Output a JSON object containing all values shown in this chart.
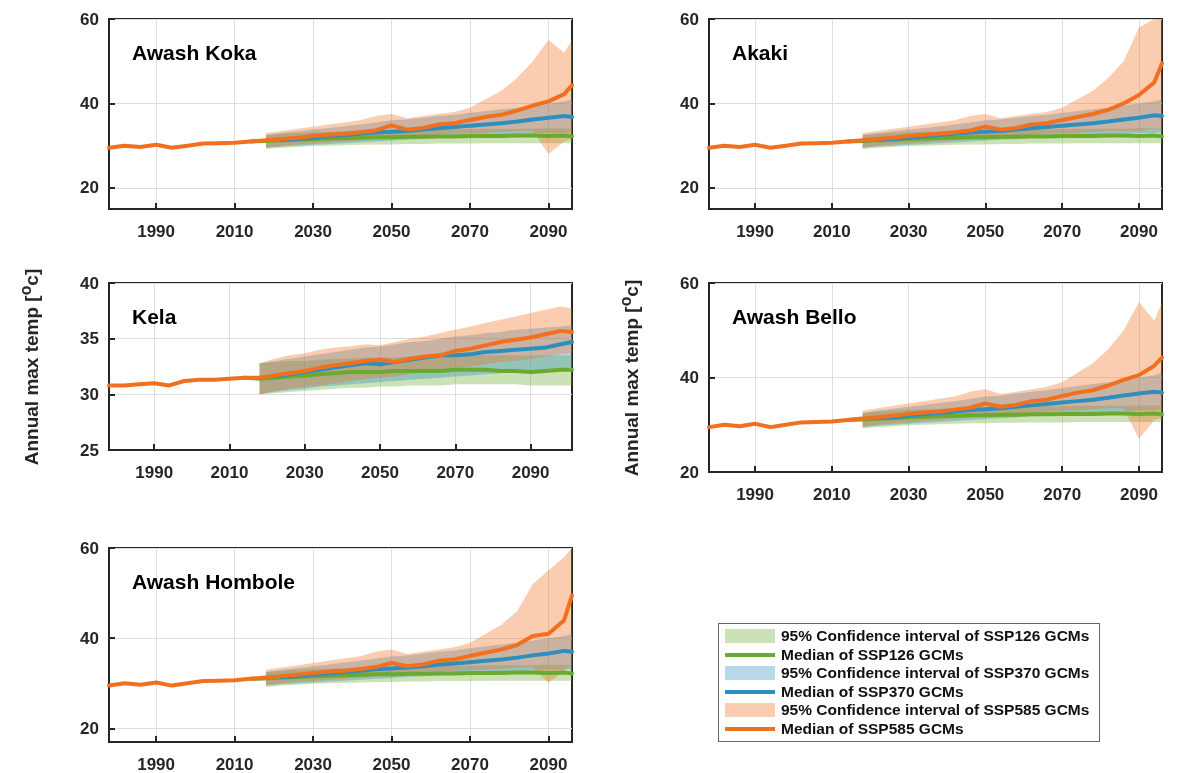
{
  "chart_data": [
    {
      "type": "line",
      "title": "Awash Koka",
      "x": [
        1978,
        1982,
        1986,
        1990,
        1994,
        1998,
        2002,
        2006,
        2010,
        2014,
        2018,
        2022,
        2026,
        2030,
        2034,
        2038,
        2042,
        2046,
        2050,
        2054,
        2058,
        2062,
        2066,
        2070,
        2074,
        2078,
        2082,
        2086,
        2090,
        2094,
        2096
      ],
      "xlim": [
        1978,
        2096
      ],
      "xticks": [
        1990,
        2010,
        2030,
        2050,
        2070,
        2090
      ],
      "ylim": [
        15,
        60
      ],
      "yticks": [
        20,
        40,
        60
      ],
      "grid": true,
      "series": [
        {
          "color": "#6aaa2e",
          "values": [
            null,
            null,
            null,
            null,
            null,
            null,
            null,
            null,
            null,
            31,
            31.1,
            31.3,
            31.4,
            31.6,
            31.7,
            31.8,
            31.9,
            32,
            32,
            32.1,
            32.1,
            32.2,
            32.2,
            32.3,
            32.3,
            32.3,
            32.4,
            32.4,
            32.3,
            32.4,
            32.2
          ],
          "lower": [
            null,
            null,
            null,
            null,
            null,
            null,
            null,
            null,
            null,
            null,
            29.2,
            29.5,
            29.7,
            29.9,
            30,
            30.1,
            30.2,
            30.3,
            30.3,
            30.4,
            30.4,
            30.5,
            30.5,
            30.5,
            30.6,
            30.6,
            30.6,
            30.6,
            30.6,
            30.6,
            30.6
          ],
          "upper": [
            null,
            null,
            null,
            null,
            null,
            null,
            null,
            null,
            null,
            null,
            32.5,
            32.8,
            33,
            33.2,
            33.3,
            33.4,
            33.5,
            33.6,
            33.7,
            33.7,
            33.8,
            33.8,
            33.9,
            33.9,
            34,
            34,
            34,
            34,
            34.1,
            34.1,
            34.1
          ]
        },
        {
          "color": "#2e8fbf",
          "values": [
            null,
            null,
            null,
            null,
            null,
            null,
            null,
            null,
            null,
            null,
            null,
            31.4,
            31.6,
            31.9,
            32.2,
            32.5,
            32.8,
            33.1,
            33.3,
            33.5,
            33.8,
            34.1,
            34.4,
            34.7,
            35,
            35.3,
            35.7,
            36.2,
            36.6,
            37,
            36.8
          ],
          "lower": [
            null,
            null,
            null,
            null,
            null,
            null,
            null,
            null,
            null,
            null,
            29.5,
            29.8,
            30,
            30.2,
            30.4,
            30.6,
            30.8,
            31,
            31.2,
            31.4,
            31.6,
            31.8,
            32,
            32.1,
            32.3,
            32.5,
            32.6,
            32.8,
            33,
            33,
            33.2
          ],
          "upper": [
            null,
            null,
            null,
            null,
            null,
            null,
            null,
            null,
            null,
            null,
            32.5,
            33,
            33.4,
            33.8,
            34.2,
            34.6,
            35,
            35.5,
            36,
            36.2,
            36.6,
            37,
            37.3,
            37.8,
            38.2,
            38.6,
            39,
            39.5,
            40,
            40.5,
            41
          ]
        },
        {
          "color": "#f07020",
          "values": [
            29.5,
            30,
            29.7,
            30.2,
            29.5,
            30,
            30.5,
            30.6,
            30.7,
            31,
            31.3,
            31.6,
            31.9,
            32.3,
            32.6,
            32.8,
            33.2,
            33.6,
            34.8,
            33.8,
            34.2,
            35,
            35.3,
            36.1,
            36.8,
            37.3,
            38.3,
            39.5,
            40.5,
            42.2,
            44.3
          ],
          "lower": [
            null,
            null,
            null,
            null,
            null,
            null,
            null,
            null,
            null,
            null,
            29.5,
            30,
            30.3,
            30.5,
            30.8,
            31,
            31.3,
            31.5,
            31.8,
            32,
            32.2,
            32.5,
            32.8,
            33,
            33,
            33.3,
            33.5,
            33.5,
            28,
            31,
            31.5
          ],
          "upper": [
            null,
            null,
            null,
            null,
            null,
            null,
            null,
            null,
            null,
            null,
            33,
            33.5,
            34,
            34.5,
            35,
            35.5,
            36,
            37,
            37.5,
            36.5,
            37,
            37.5,
            38,
            39,
            41,
            43,
            46,
            50,
            55,
            52,
            55
          ]
        }
      ]
    },
    {
      "type": "line",
      "title": "Akaki",
      "x": [
        1978,
        1982,
        1986,
        1990,
        1994,
        1998,
        2002,
        2006,
        2010,
        2014,
        2018,
        2022,
        2026,
        2030,
        2034,
        2038,
        2042,
        2046,
        2050,
        2054,
        2058,
        2062,
        2066,
        2070,
        2074,
        2078,
        2082,
        2086,
        2090,
        2094,
        2096
      ],
      "xlim": [
        1978,
        2096
      ],
      "xticks": [
        1990,
        2010,
        2030,
        2050,
        2070,
        2090
      ],
      "ylim": [
        15,
        60
      ],
      "yticks": [
        20,
        40,
        60
      ],
      "grid": true,
      "series": [
        {
          "color": "#6aaa2e",
          "values": [
            null,
            null,
            null,
            null,
            null,
            null,
            null,
            null,
            null,
            31,
            31.1,
            31.3,
            31.4,
            31.6,
            31.7,
            31.8,
            31.9,
            32,
            32,
            32.1,
            32.1,
            32.2,
            32.2,
            32.3,
            32.3,
            32.3,
            32.4,
            32.4,
            32.3,
            32.4,
            32.2
          ],
          "lower": [
            null,
            null,
            null,
            null,
            null,
            null,
            null,
            null,
            null,
            null,
            29.2,
            29.5,
            29.7,
            29.9,
            30,
            30.1,
            30.2,
            30.3,
            30.3,
            30.4,
            30.4,
            30.5,
            30.5,
            30.5,
            30.6,
            30.6,
            30.6,
            30.6,
            30.6,
            30.6,
            30.6
          ],
          "upper": [
            null,
            null,
            null,
            null,
            null,
            null,
            null,
            null,
            null,
            null,
            32.5,
            32.8,
            33,
            33.2,
            33.3,
            33.4,
            33.5,
            33.6,
            33.7,
            33.7,
            33.8,
            33.8,
            33.9,
            33.9,
            34,
            34,
            34,
            34,
            34.1,
            34.1,
            34.1
          ]
        },
        {
          "color": "#2e8fbf",
          "values": [
            null,
            null,
            null,
            null,
            null,
            null,
            null,
            null,
            null,
            null,
            null,
            31.4,
            31.6,
            31.9,
            32.2,
            32.5,
            32.8,
            33.1,
            33.3,
            33.5,
            33.8,
            34.1,
            34.4,
            34.7,
            35,
            35.3,
            35.7,
            36.2,
            36.6,
            37.2,
            37
          ],
          "lower": [
            null,
            null,
            null,
            null,
            null,
            null,
            null,
            null,
            null,
            null,
            29.5,
            29.8,
            30,
            30.2,
            30.4,
            30.6,
            30.8,
            31,
            31.2,
            31.4,
            31.6,
            31.8,
            32,
            32.1,
            32.3,
            32.5,
            32.6,
            32.8,
            33,
            33,
            33.2
          ],
          "upper": [
            null,
            null,
            null,
            null,
            null,
            null,
            null,
            null,
            null,
            null,
            32.5,
            33,
            33.4,
            33.8,
            34.2,
            34.6,
            35,
            35.5,
            36,
            36.2,
            36.6,
            37,
            37.3,
            37.8,
            38.2,
            38.6,
            39,
            39.5,
            40,
            40.5,
            41
          ]
        },
        {
          "color": "#f07020",
          "values": [
            29.5,
            30,
            29.7,
            30.2,
            29.5,
            30,
            30.5,
            30.6,
            30.7,
            31,
            31.3,
            31.6,
            31.9,
            32.3,
            32.6,
            32.8,
            33.2,
            33.6,
            34.5,
            33.8,
            34.2,
            35,
            35.3,
            36.1,
            36.8,
            37.5,
            38.5,
            40,
            42,
            45,
            49.5
          ],
          "lower": [
            null,
            null,
            null,
            null,
            null,
            null,
            null,
            null,
            null,
            null,
            29.5,
            30,
            30.3,
            30.5,
            30.8,
            31,
            31.3,
            31.5,
            31.8,
            32,
            32.2,
            32.5,
            32.8,
            33,
            33,
            33.3,
            33.5,
            33.5,
            33.5,
            34,
            34
          ],
          "upper": [
            null,
            null,
            null,
            null,
            null,
            null,
            null,
            null,
            null,
            null,
            33,
            33.5,
            34,
            34.5,
            35,
            35.5,
            36,
            37,
            37.5,
            36.5,
            37,
            37.5,
            38,
            39,
            41,
            43,
            46,
            50,
            58,
            60,
            60
          ]
        }
      ]
    },
    {
      "type": "line",
      "title": "Kela",
      "ylabel": "Annual max temp [$^{o}$c]",
      "x": [
        1978,
        1982,
        1986,
        1990,
        1994,
        1998,
        2002,
        2006,
        2010,
        2014,
        2018,
        2022,
        2026,
        2030,
        2034,
        2038,
        2042,
        2046,
        2050,
        2054,
        2058,
        2062,
        2066,
        2070,
        2074,
        2078,
        2082,
        2086,
        2090,
        2094,
        2098,
        2101
      ],
      "xlim": [
        1978,
        2101
      ],
      "xticks": [
        1990,
        2010,
        2030,
        2050,
        2070,
        2090
      ],
      "ylim": [
        25,
        40
      ],
      "yticks": [
        25,
        30,
        35,
        40
      ],
      "grid": true,
      "series": [
        {
          "color": "#6aaa2e",
          "values": [
            null,
            null,
            null,
            null,
            null,
            null,
            null,
            null,
            null,
            31.5,
            31.4,
            31.5,
            31.6,
            31.7,
            31.8,
            31.9,
            32,
            32,
            32,
            32.1,
            32.1,
            32.1,
            32.1,
            32.2,
            32.2,
            32.2,
            32.1,
            32.1,
            32,
            32.1,
            32.2,
            32.2
          ],
          "lower": [
            null,
            null,
            null,
            null,
            null,
            null,
            null,
            null,
            null,
            null,
            30,
            30.1,
            30.2,
            30.3,
            30.4,
            30.5,
            30.6,
            30.6,
            30.7,
            30.7,
            30.8,
            30.8,
            30.8,
            30.9,
            30.9,
            30.9,
            30.9,
            30.9,
            30.8,
            30.8,
            30.8,
            30.8
          ],
          "upper": [
            null,
            null,
            null,
            null,
            null,
            null,
            null,
            null,
            null,
            null,
            32.8,
            32.9,
            33,
            33,
            33.1,
            33.2,
            33.2,
            33.3,
            33.3,
            33.3,
            33.4,
            33.4,
            33.4,
            33.5,
            33.5,
            33.5,
            33.5,
            33.5,
            33.5,
            33.5,
            33.5,
            33.5
          ]
        },
        {
          "color": "#2e8fbf",
          "values": [
            null,
            null,
            null,
            null,
            null,
            null,
            null,
            null,
            null,
            null,
            null,
            31.6,
            31.8,
            32,
            32.2,
            32.4,
            32.6,
            32.8,
            32.7,
            32.9,
            33.1,
            33.3,
            33.5,
            33.5,
            33.6,
            33.8,
            33.9,
            34,
            34.1,
            34.2,
            34.5,
            34.7
          ],
          "lower": [
            null,
            null,
            null,
            null,
            null,
            null,
            null,
            null,
            null,
            null,
            30,
            30.2,
            30.4,
            30.5,
            30.7,
            30.8,
            30.9,
            31,
            31.1,
            31.2,
            31.3,
            31.4,
            31.5,
            31.6,
            31.7,
            31.8,
            31.9,
            32,
            32.1,
            32.2,
            32.3,
            32.4
          ],
          "upper": [
            null,
            null,
            null,
            null,
            null,
            null,
            null,
            null,
            null,
            null,
            32.8,
            33,
            33.2,
            33.4,
            33.6,
            33.8,
            34,
            34.2,
            34.3,
            34.5,
            34.7,
            34.8,
            35,
            35.2,
            35.3,
            35.5,
            35.6,
            35.8,
            35.9,
            36,
            36.1,
            36.2
          ]
        },
        {
          "color": "#f07020",
          "values": [
            30.8,
            30.8,
            30.9,
            31,
            30.8,
            31.2,
            31.3,
            31.3,
            31.4,
            31.5,
            31.5,
            31.7,
            31.9,
            32.1,
            32.4,
            32.6,
            32.8,
            33,
            33.1,
            32.9,
            33.2,
            33.4,
            33.5,
            33.9,
            34.1,
            34.4,
            34.7,
            34.9,
            35.1,
            35.4,
            35.7,
            35.6
          ],
          "lower": [
            null,
            null,
            null,
            null,
            null,
            null,
            null,
            null,
            null,
            null,
            30,
            30.3,
            30.5,
            30.7,
            30.8,
            31,
            31.2,
            31.4,
            31.5,
            31.6,
            31.8,
            32,
            32.1,
            32.3,
            32.5,
            32.7,
            32.9,
            33,
            33.2,
            33.4,
            33.6,
            33.7
          ],
          "upper": [
            null,
            null,
            null,
            null,
            null,
            null,
            null,
            null,
            null,
            null,
            32.8,
            33.2,
            33.5,
            33.7,
            34,
            34.2,
            34.3,
            34.5,
            34.4,
            34.7,
            35,
            35.2,
            35.5,
            35.8,
            36.1,
            36.4,
            36.7,
            37,
            37.3,
            37.6,
            37.9,
            37.7
          ]
        }
      ]
    },
    {
      "type": "line",
      "title": "Awash Bello",
      "ylabel": "Annual max temp [$^{o}$c]",
      "x": [
        1978,
        1982,
        1986,
        1990,
        1994,
        1998,
        2002,
        2006,
        2010,
        2014,
        2018,
        2022,
        2026,
        2030,
        2034,
        2038,
        2042,
        2046,
        2050,
        2054,
        2058,
        2062,
        2066,
        2070,
        2074,
        2078,
        2082,
        2086,
        2090,
        2094,
        2096
      ],
      "xlim": [
        1978,
        2096
      ],
      "xticks": [
        1990,
        2010,
        2030,
        2050,
        2070,
        2090
      ],
      "ylim": [
        20,
        60
      ],
      "yticks": [
        20,
        40,
        60
      ],
      "grid": true,
      "series": [
        {
          "color": "#6aaa2e",
          "values": [
            null,
            null,
            null,
            null,
            null,
            null,
            null,
            null,
            null,
            31,
            31.1,
            31.3,
            31.4,
            31.6,
            31.7,
            31.8,
            31.9,
            32,
            32,
            32.1,
            32.1,
            32.2,
            32.2,
            32.3,
            32.3,
            32.3,
            32.4,
            32.4,
            32.3,
            32.4,
            32.2
          ],
          "lower": [
            null,
            null,
            null,
            null,
            null,
            null,
            null,
            null,
            null,
            null,
            29.2,
            29.5,
            29.7,
            29.9,
            30,
            30.1,
            30.2,
            30.3,
            30.3,
            30.4,
            30.4,
            30.5,
            30.5,
            30.5,
            30.6,
            30.6,
            30.6,
            30.6,
            30.6,
            30.6,
            30.6
          ],
          "upper": [
            null,
            null,
            null,
            null,
            null,
            null,
            null,
            null,
            null,
            null,
            32.5,
            32.8,
            33,
            33.2,
            33.3,
            33.4,
            33.5,
            33.6,
            33.7,
            33.7,
            33.8,
            33.8,
            33.9,
            33.9,
            34,
            34,
            34,
            34,
            34.1,
            34.1,
            34.1
          ]
        },
        {
          "color": "#2e8fbf",
          "values": [
            null,
            null,
            null,
            null,
            null,
            null,
            null,
            null,
            null,
            null,
            null,
            31.4,
            31.6,
            31.9,
            32.2,
            32.5,
            32.8,
            33.1,
            33.3,
            33.5,
            33.8,
            34.1,
            34.4,
            34.7,
            35,
            35.3,
            35.7,
            36.2,
            36.6,
            37,
            36.8
          ],
          "lower": [
            null,
            null,
            null,
            null,
            null,
            null,
            null,
            null,
            null,
            null,
            29.5,
            29.8,
            30,
            30.2,
            30.4,
            30.6,
            30.8,
            31,
            31.2,
            31.4,
            31.6,
            31.8,
            32,
            32.1,
            32.3,
            32.5,
            32.6,
            32.8,
            33,
            33,
            33.2
          ],
          "upper": [
            null,
            null,
            null,
            null,
            null,
            null,
            null,
            null,
            null,
            null,
            32.5,
            33,
            33.4,
            33.8,
            34.2,
            34.6,
            35,
            35.5,
            36,
            36.2,
            36.6,
            37,
            37.3,
            37.8,
            38.2,
            38.6,
            39,
            39.5,
            40,
            40.5,
            41
          ]
        },
        {
          "color": "#f07020",
          "values": [
            29.5,
            30,
            29.7,
            30.2,
            29.5,
            30,
            30.5,
            30.6,
            30.7,
            31,
            31.3,
            31.6,
            31.9,
            32.3,
            32.6,
            32.8,
            33.2,
            33.6,
            34.5,
            33.8,
            34.2,
            35,
            35.3,
            36.1,
            36.8,
            37.3,
            38.3,
            39.5,
            40.5,
            42.5,
            44.2
          ],
          "lower": [
            null,
            null,
            null,
            null,
            null,
            null,
            null,
            null,
            null,
            null,
            29.5,
            30,
            30.3,
            30.5,
            30.8,
            31,
            31.3,
            31.5,
            31.8,
            32,
            32.2,
            32.5,
            32.8,
            33,
            33,
            33.3,
            33.5,
            33.5,
            27,
            31,
            31.5
          ],
          "upper": [
            null,
            null,
            null,
            null,
            null,
            null,
            null,
            null,
            null,
            null,
            33,
            33.5,
            34,
            34.5,
            35,
            35.5,
            36,
            37,
            37.5,
            36.5,
            37,
            37.5,
            38,
            39,
            41,
            43,
            46,
            50,
            56,
            52,
            56
          ]
        }
      ]
    },
    {
      "type": "line",
      "title": "Awash Hombole",
      "x": [
        1978,
        1982,
        1986,
        1990,
        1994,
        1998,
        2002,
        2006,
        2010,
        2014,
        2018,
        2022,
        2026,
        2030,
        2034,
        2038,
        2042,
        2046,
        2050,
        2054,
        2058,
        2062,
        2066,
        2070,
        2074,
        2078,
        2082,
        2086,
        2090,
        2094,
        2096
      ],
      "xlim": [
        1978,
        2096
      ],
      "xticks": [
        1990,
        2010,
        2030,
        2050,
        2070,
        2090
      ],
      "ylim": [
        17,
        60
      ],
      "yticks": [
        20,
        40,
        60
      ],
      "grid": true,
      "legend": "right",
      "annotations": [
        "95% Confidence interval of SSP126 GCMs",
        "95% Confidence interval of SSP370 GCMs",
        "95% Confidence interval of SSP585 GCMs"
      ],
      "series": [
        {
          "name": "Median of SSP126 GCMs",
          "color": "#6aaa2e",
          "values": [
            null,
            null,
            null,
            null,
            null,
            null,
            null,
            null,
            null,
            31,
            31.1,
            31.3,
            31.4,
            31.6,
            31.7,
            31.8,
            31.9,
            32,
            32,
            32.1,
            32.1,
            32.2,
            32.2,
            32.3,
            32.3,
            32.3,
            32.4,
            32.4,
            32.3,
            32.4,
            32.2
          ],
          "lower": [
            null,
            null,
            null,
            null,
            null,
            null,
            null,
            null,
            null,
            null,
            29.2,
            29.5,
            29.7,
            29.9,
            30,
            30.1,
            30.2,
            30.3,
            30.3,
            30.4,
            30.4,
            30.5,
            30.5,
            30.5,
            30.6,
            30.6,
            30.6,
            30.6,
            30.6,
            30.6,
            30.6
          ],
          "upper": [
            null,
            null,
            null,
            null,
            null,
            null,
            null,
            null,
            null,
            null,
            32.5,
            32.8,
            33,
            33.2,
            33.3,
            33.4,
            33.5,
            33.6,
            33.7,
            33.7,
            33.8,
            33.8,
            33.9,
            33.9,
            34,
            34,
            34,
            34,
            34.1,
            34.1,
            34.1
          ]
        },
        {
          "name": "Median of SSP370 GCMs",
          "color": "#2e8fbf",
          "values": [
            null,
            null,
            null,
            null,
            null,
            null,
            null,
            null,
            null,
            null,
            null,
            31.4,
            31.6,
            31.9,
            32.2,
            32.5,
            32.8,
            33.1,
            33.3,
            33.5,
            33.8,
            34.1,
            34.4,
            34.7,
            35,
            35.3,
            35.7,
            36.2,
            36.6,
            37.2,
            37
          ],
          "lower": [
            null,
            null,
            null,
            null,
            null,
            null,
            null,
            null,
            null,
            null,
            29.5,
            29.8,
            30,
            30.2,
            30.4,
            30.6,
            30.8,
            31,
            31.2,
            31.4,
            31.6,
            31.8,
            32,
            32.1,
            32.3,
            32.5,
            32.6,
            32.8,
            33,
            33,
            33.2
          ],
          "upper": [
            null,
            null,
            null,
            null,
            null,
            null,
            null,
            null,
            null,
            null,
            32.5,
            33,
            33.4,
            33.8,
            34.2,
            34.6,
            35,
            35.5,
            36,
            36.2,
            36.6,
            37,
            37.3,
            37.8,
            38.2,
            38.6,
            39,
            39.5,
            40,
            40.5,
            41
          ]
        },
        {
          "name": "Median of SSP585 GCMs",
          "color": "#f07020",
          "values": [
            29.5,
            30,
            29.7,
            30.2,
            29.5,
            30,
            30.5,
            30.6,
            30.7,
            31,
            31.3,
            31.6,
            31.9,
            32.3,
            32.6,
            32.8,
            33.2,
            33.6,
            34.5,
            33.8,
            34.2,
            35,
            35.3,
            36.1,
            36.8,
            37.5,
            38.5,
            40.5,
            41,
            44,
            49.5
          ],
          "lower": [
            null,
            null,
            null,
            null,
            null,
            null,
            null,
            null,
            null,
            null,
            29.5,
            30,
            30.3,
            30.5,
            30.8,
            31,
            31.3,
            31.5,
            31.8,
            32,
            32.2,
            32.5,
            32.8,
            33,
            33,
            33.3,
            33.5,
            33.5,
            30,
            33,
            34
          ],
          "upper": [
            null,
            null,
            null,
            null,
            null,
            null,
            null,
            null,
            null,
            null,
            33,
            33.5,
            34,
            34.5,
            35,
            35.5,
            36,
            37,
            37.5,
            36.5,
            37,
            37.5,
            38,
            39,
            41,
            43,
            46,
            52,
            55,
            58,
            60
          ]
        }
      ]
    }
  ]
}
